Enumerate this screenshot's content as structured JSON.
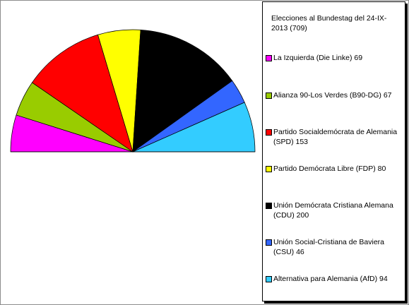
{
  "chart_data": {
    "type": "pie",
    "variant": "half-donut parliament",
    "title": "Elecciones al Bundestag del 24-IX-2013 (709)",
    "total": 709,
    "legend_position": "right",
    "slices": [
      {
        "label": "La Izquierda (Die Linke) 69",
        "value": 69,
        "color": "#ff00ff"
      },
      {
        "label": "Alianza 90-Los Verdes (B90-DG) 67",
        "value": 67,
        "color": "#99cc00"
      },
      {
        "label": "Partido Socialdemócrata de Alemania (SPD) 153",
        "value": 153,
        "color": "#ff0000"
      },
      {
        "label": "Partido Demócrata Libre (FDP) 80",
        "value": 80,
        "color": "#ffff00"
      },
      {
        "label": "Unión Demócrata Cristiana Alemana (CDU) 200",
        "value": 200,
        "color": "#000000"
      },
      {
        "label": "Unión Social-Cristiana de Baviera (CSU) 46",
        "value": 46,
        "color": "#3366ff"
      },
      {
        "label": "Alternativa para Alemania (AfD) 94",
        "value": 94,
        "color": "#33ccff"
      }
    ]
  }
}
